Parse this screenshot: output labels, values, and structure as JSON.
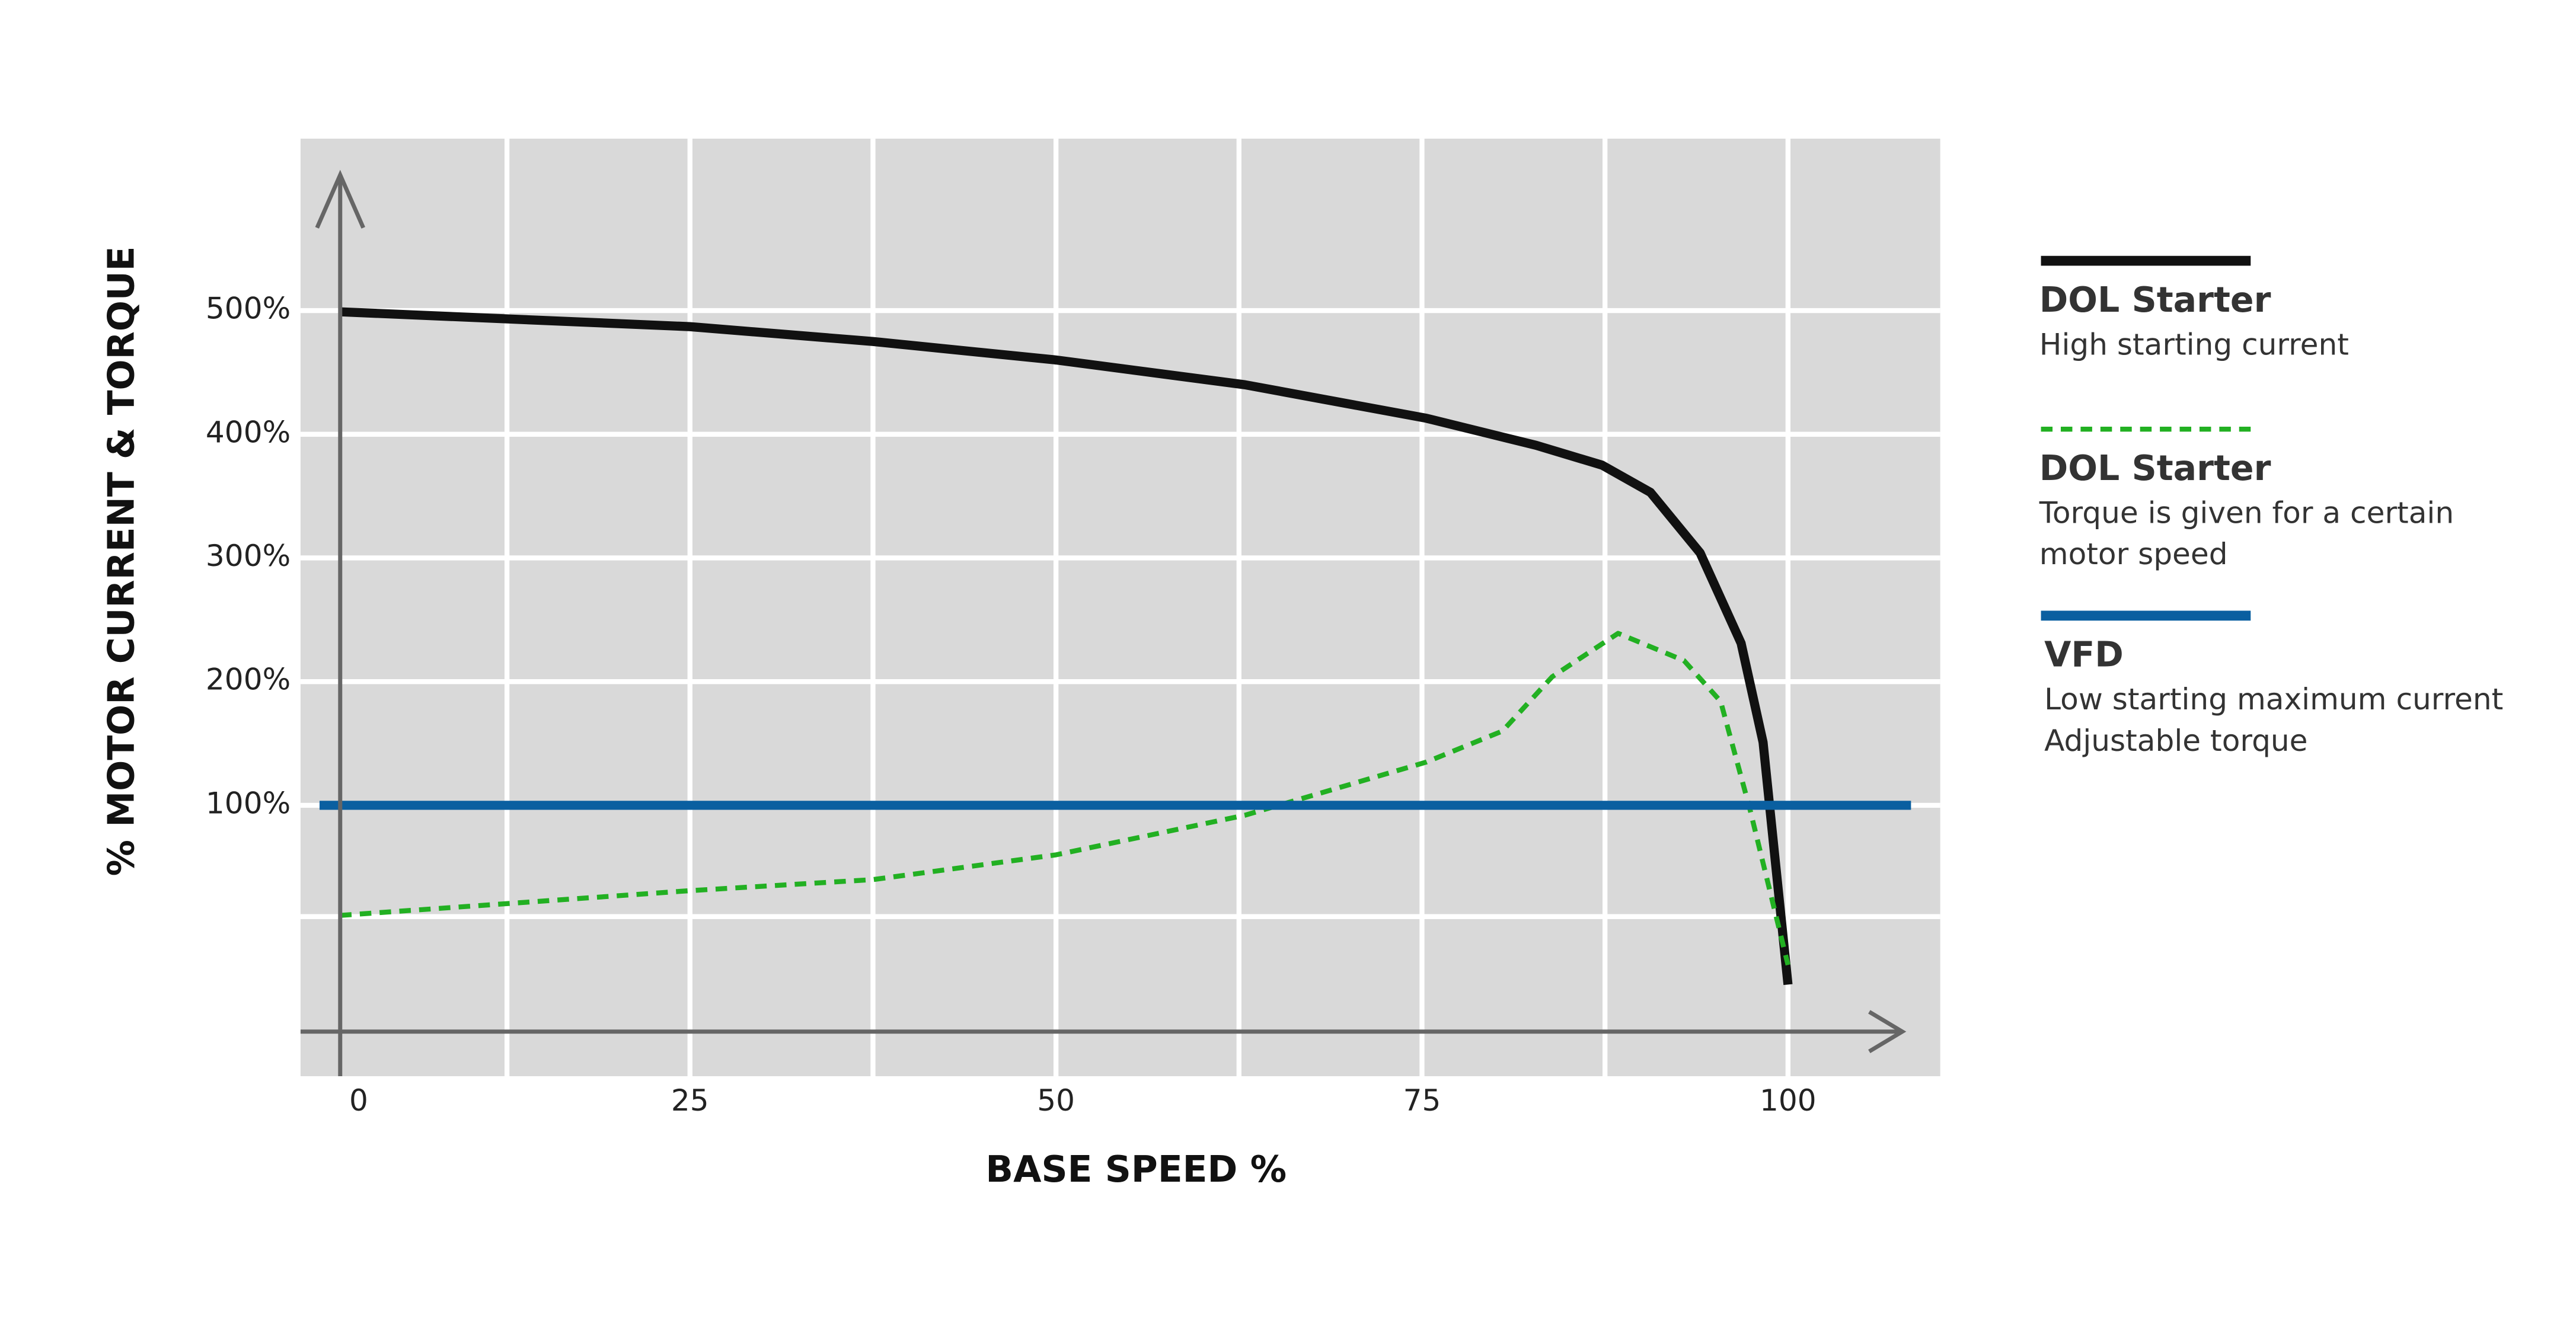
{
  "chart_data": {
    "type": "line",
    "xlabel": "BASE SPEED %",
    "ylabel": "% MOTOR CURRENT & TORQUE",
    "xlim": [
      -1.6,
      110.4
    ],
    "ylim": [
      -119,
      639
    ],
    "xticks": [
      0,
      25,
      50,
      75,
      100
    ],
    "yticks": [
      {
        "value": 100,
        "label": "100%"
      },
      {
        "value": 200,
        "label": "200%"
      },
      {
        "value": 300,
        "label": "300%"
      },
      {
        "value": 400,
        "label": "400%"
      },
      {
        "value": 500,
        "label": "500%"
      }
    ],
    "grid": true,
    "legend": "right",
    "series": [
      {
        "name": "DOL Starter",
        "description": [
          "High starting current"
        ],
        "color": "#111111",
        "dash": "solid",
        "x": [
          1.1,
          25,
          37.5,
          50,
          62.9,
          75.3,
          82.8,
          87.3,
          90.6,
          94,
          96.8,
          98.3,
          100
        ],
        "values": [
          499,
          487,
          475,
          460,
          440,
          413,
          391,
          375,
          353,
          304,
          231,
          151,
          -45
        ]
      },
      {
        "name": "DOL Starter",
        "description": [
          "Torque is given for a certain",
          "motor speed"
        ],
        "color": "#22b022",
        "dash": "dashed",
        "x": [
          1.1,
          25,
          37.5,
          50,
          62.9,
          75.3,
          80.5,
          83.9,
          88.4,
          92.9,
          95.4,
          97.4,
          100
        ],
        "values": [
          11,
          31,
          40,
          60,
          92,
          135,
          160,
          204,
          239,
          217,
          184,
          97,
          -29
        ]
      },
      {
        "name": "VFD",
        "description": [
          "Low starting maximum current",
          "Adjustable torque"
        ],
        "color": "#0a5fa0",
        "dash": "solid",
        "x": [
          -0.3,
          108.4
        ],
        "values": [
          100,
          100
        ]
      }
    ]
  }
}
